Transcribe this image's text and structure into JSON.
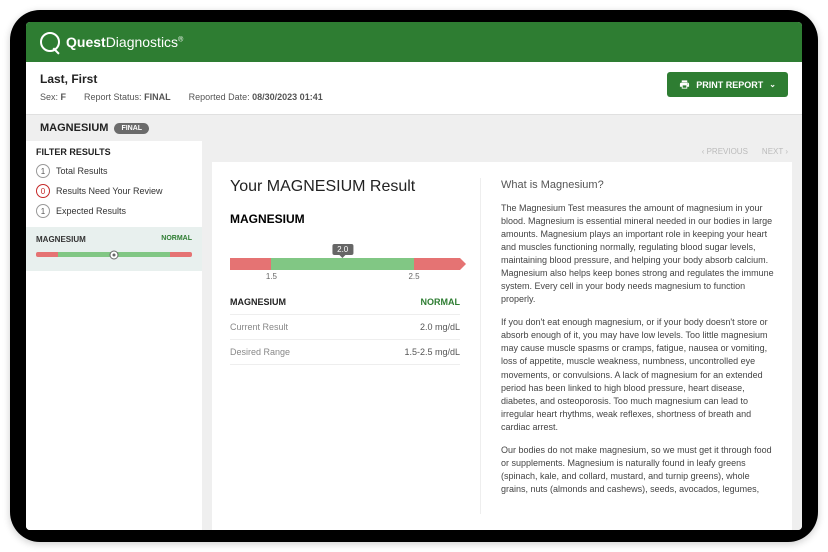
{
  "brand": {
    "strong": "Quest",
    "light": "Diagnostics"
  },
  "patient": {
    "name": "Last, First",
    "sex_label": "Sex:",
    "sex": "F",
    "status_label": "Report Status:",
    "status": "FINAL",
    "reported_label": "Reported Date:",
    "reported": "08/30/2023 01:41"
  },
  "print_label": "PRINT REPORT",
  "test_header": "MAGNESIUM",
  "final_badge": "FINAL",
  "sidebar": {
    "filter_title": "FILTER RESULTS",
    "rows": [
      {
        "count": "1",
        "label": "Total Results",
        "red": false
      },
      {
        "count": "0",
        "label": "Results Need Your Review",
        "red": true
      },
      {
        "count": "1",
        "label": "Expected Results",
        "red": false
      }
    ],
    "item": {
      "name": "MAGNESIUM",
      "status": "NORMAL"
    }
  },
  "nav": {
    "prev": "‹  PREVIOUS",
    "next": "NEXT  ›"
  },
  "result": {
    "title": "Your MAGNESIUM Result",
    "test": "MAGNESIUM",
    "value": "2.0",
    "value_pos_pct": 49,
    "range_low_tick": "1.5",
    "range_low_pos_pct": 18,
    "range_hi_tick": "2.5",
    "range_hi_pos_pct": 80,
    "status": "NORMAL",
    "rows": [
      {
        "k": "MAGNESIUM",
        "v": "NORMAL",
        "head": true,
        "normal": true
      },
      {
        "k": "Current Result",
        "v": "2.0 mg/dL"
      },
      {
        "k": "Desired Range",
        "v": "1.5-2.5 mg/dL"
      }
    ]
  },
  "info": {
    "heading": "What is Magnesium?",
    "p1": "The Magnesium Test measures the amount of magnesium in your blood. Magnesium is essential mineral needed in our bodies in large amounts. Magnesium plays an important role in keeping your heart and muscles functioning normally, regulating blood sugar levels, maintaining blood pressure, and helping your body absorb calcium. Magnesium also helps keep bones strong and regulates the immune system. Every cell in your body needs magnesium to function properly.",
    "p2": "If you don't eat enough magnesium, or if your body doesn't store or absorb enough of it, you may have low levels. Too little magnesium may cause muscle spasms or cramps, fatigue, nausea or vomiting, loss of appetite, muscle weakness, numbness, uncontrolled eye movements, or convulsions. A lack of magnesium for an extended period has been linked to high blood pressure, heart disease, diabetes, and osteoporosis. Too much magnesium can lead to irregular heart rhythms, weak reflexes, shortness of breath and cardiac arrest.",
    "p3": "Our bodies do not make magnesium, so we must get it through food or supplements. Magnesium is naturally found in leafy greens (spinach, kale, and collard, mustard, and turnip greens), whole grains, nuts (almonds and cashews), seeds, avocados, legumes,"
  },
  "colors": {
    "brand_green": "#2e7d32",
    "range_ok": "#81c784",
    "range_bad": "#e57373"
  }
}
